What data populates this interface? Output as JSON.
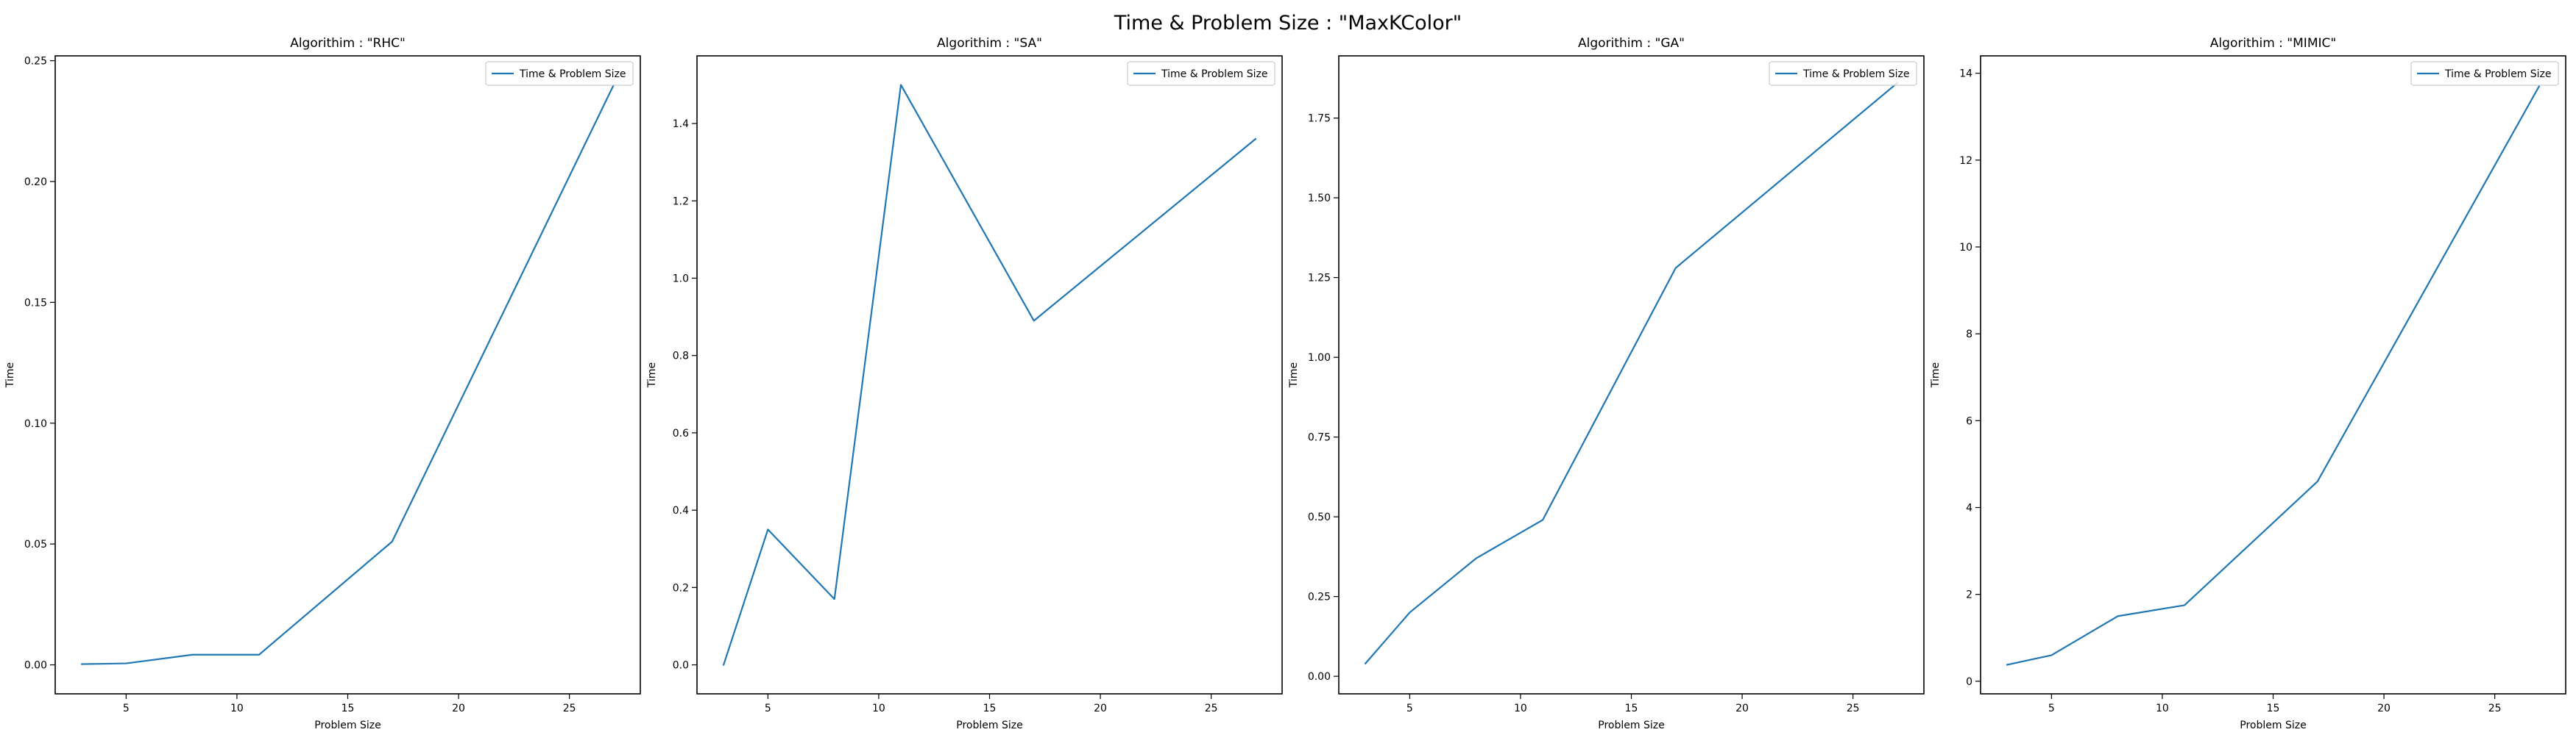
{
  "figure": {
    "suptitle": "Time & Problem Size : \"MaxKColor\""
  },
  "colors": {
    "series": "#1f77b4",
    "frame": "#000000",
    "legend_border": "#cccccc"
  },
  "chart_data": [
    {
      "type": "line",
      "title": "Algorithim : \"RHC\"",
      "xlabel": "Problem Size",
      "ylabel": "Time",
      "xlim": [
        1.8,
        28.2
      ],
      "ylim": [
        -0.012,
        0.252
      ],
      "xticks": [
        5,
        10,
        15,
        20,
        25
      ],
      "yticks": [
        0.0,
        0.05,
        0.1,
        0.15,
        0.2,
        0.25
      ],
      "ytick_labels": [
        "0.00",
        "0.05",
        "0.10",
        "0.15",
        "0.20",
        "0.25"
      ],
      "grid": false,
      "legend": "upper right",
      "series": [
        {
          "name": "Time & Problem Size",
          "x": [
            3,
            5,
            8,
            11,
            17,
            27
          ],
          "y": [
            0.0003,
            0.0006,
            0.0042,
            0.0042,
            0.051,
            0.24
          ]
        }
      ]
    },
    {
      "type": "line",
      "title": "Algorithim : \"SA\"",
      "xlabel": "Problem Size",
      "ylabel": "Time",
      "xlim": [
        1.8,
        28.2
      ],
      "ylim": [
        -0.075,
        1.575
      ],
      "xticks": [
        5,
        10,
        15,
        20,
        25
      ],
      "yticks": [
        0.0,
        0.2,
        0.4,
        0.6,
        0.8,
        1.0,
        1.2,
        1.4
      ],
      "ytick_labels": [
        "0.0",
        "0.2",
        "0.4",
        "0.6",
        "0.8",
        "1.0",
        "1.2",
        "1.4"
      ],
      "grid": false,
      "legend": "upper right",
      "series": [
        {
          "name": "Time & Problem Size",
          "x": [
            3,
            5,
            8,
            11,
            17,
            27
          ],
          "y": [
            0.0,
            0.35,
            0.17,
            1.5,
            0.89,
            1.36
          ]
        }
      ]
    },
    {
      "type": "line",
      "title": "Algorithim : \"GA\"",
      "xlabel": "Problem Size",
      "ylabel": "Time",
      "xlim": [
        1.8,
        28.2
      ],
      "ylim": [
        -0.055,
        1.945
      ],
      "xticks": [
        5,
        10,
        15,
        20,
        25
      ],
      "yticks": [
        0.0,
        0.25,
        0.5,
        0.75,
        1.0,
        1.25,
        1.5,
        1.75
      ],
      "ytick_labels": [
        "0.00",
        "0.25",
        "0.50",
        "0.75",
        "1.00",
        "1.25",
        "1.50",
        "1.75"
      ],
      "grid": false,
      "legend": "upper right",
      "series": [
        {
          "name": "Time & Problem Size",
          "x": [
            3,
            5,
            8,
            11,
            17,
            27
          ],
          "y": [
            0.04,
            0.2,
            0.37,
            0.49,
            1.28,
            1.86
          ]
        }
      ]
    },
    {
      "type": "line",
      "title": "Algorithim : \"MIMIC\"",
      "xlabel": "Problem Size",
      "ylabel": "Time",
      "xlim": [
        1.8,
        28.2
      ],
      "ylim": [
        -0.29,
        14.4
      ],
      "xticks": [
        5,
        10,
        15,
        20,
        25
      ],
      "yticks": [
        0,
        2,
        4,
        6,
        8,
        10,
        12,
        14
      ],
      "ytick_labels": [
        "0",
        "2",
        "4",
        "6",
        "8",
        "10",
        "12",
        "14"
      ],
      "grid": false,
      "legend": "upper right",
      "series": [
        {
          "name": "Time & Problem Size",
          "x": [
            3,
            5,
            8,
            11,
            17,
            27
          ],
          "y": [
            0.38,
            0.6,
            1.5,
            1.75,
            4.6,
            13.7
          ]
        }
      ]
    }
  ]
}
